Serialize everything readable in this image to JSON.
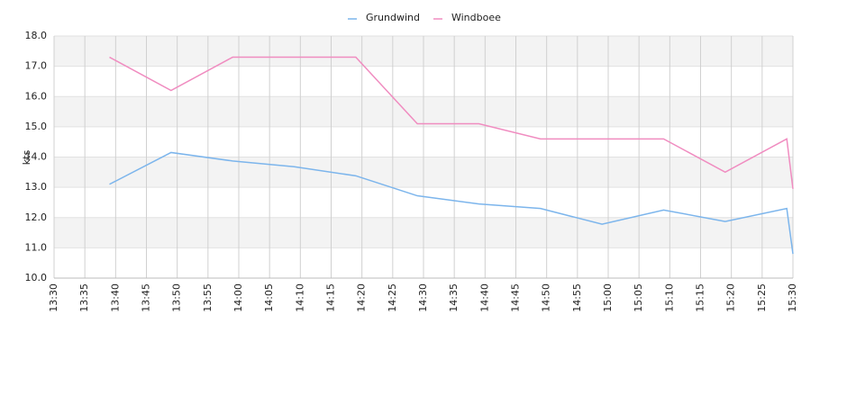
{
  "chart_data": {
    "type": "line",
    "ylabel": "kts",
    "x": [
      "13:39",
      "13:49",
      "13:59",
      "14:09",
      "14:19",
      "14:29",
      "14:39",
      "14:49",
      "14:59",
      "15:09",
      "15:19",
      "15:29",
      "15:30"
    ],
    "series": [
      {
        "name": "Grundwind",
        "color": "#7cb5ec",
        "values": [
          13.1,
          14.15,
          13.87,
          13.68,
          13.38,
          12.72,
          12.45,
          12.3,
          11.78,
          12.25,
          11.87,
          12.3,
          10.8
        ]
      },
      {
        "name": "Windboee",
        "color": "#f08cc0",
        "values": [
          17.3,
          16.2,
          17.3,
          17.3,
          17.3,
          15.1,
          15.1,
          14.6,
          14.6,
          14.6,
          13.5,
          14.6,
          12.95
        ]
      }
    ],
    "xlim": [
      "13:30",
      "15:30"
    ],
    "xticks": [
      "13:30",
      "13:35",
      "13:40",
      "13:45",
      "13:50",
      "13:55",
      "14:00",
      "14:05",
      "14:10",
      "14:15",
      "14:20",
      "14:25",
      "14:30",
      "14:35",
      "14:40",
      "14:45",
      "14:50",
      "14:55",
      "15:00",
      "15:05",
      "15:10",
      "15:15",
      "15:20",
      "15:25",
      "15:30"
    ],
    "ylim": [
      10,
      18
    ],
    "yticks": [
      {
        "value": 10,
        "label": "10.0"
      },
      {
        "value": 11,
        "label": "11.0"
      },
      {
        "value": 12,
        "label": "12.0"
      },
      {
        "value": 13,
        "label": "13.0"
      },
      {
        "value": 14,
        "label": "14.0"
      },
      {
        "value": 15,
        "label": "15.0"
      },
      {
        "value": 16,
        "label": "16.0"
      },
      {
        "value": 17,
        "label": "17.0"
      },
      {
        "value": 18,
        "label": "18.0"
      }
    ],
    "grid": true,
    "legend": "top"
  }
}
